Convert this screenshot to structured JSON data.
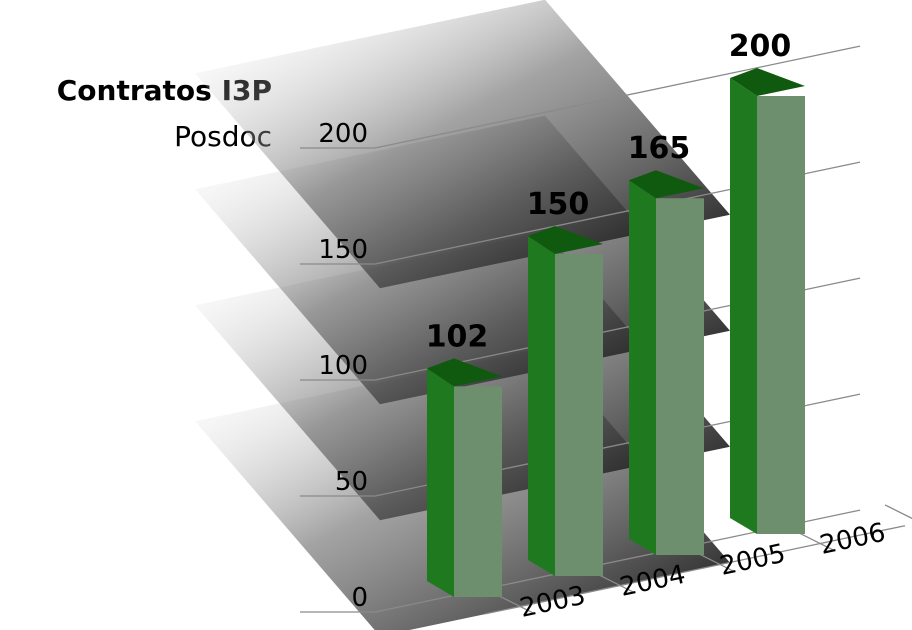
{
  "chart_data": {
    "type": "bar",
    "title": "Contratos I3P",
    "subtitle": "Posdoc",
    "categories": [
      "2003",
      "2004",
      "2005",
      "2006"
    ],
    "values": [
      102,
      150,
      165,
      200
    ],
    "y_ticks": [
      "0",
      "50",
      "100",
      "150",
      "200"
    ],
    "ylim": [
      0,
      200
    ],
    "grid": true,
    "legend": "none",
    "three_d": true,
    "colors": {
      "bar_front": "#1f7a1f",
      "bar_side": "#6e8f6e",
      "bar_top": "#0f5a0f",
      "grid": "#8a8a8a",
      "shadow": "#000000"
    }
  }
}
